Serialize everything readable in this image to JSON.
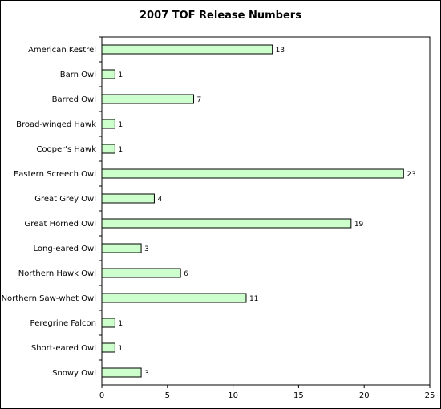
{
  "chart_data": {
    "type": "bar",
    "orientation": "horizontal",
    "title": "2007 TOF Release Numbers",
    "xlabel": "",
    "ylabel": "",
    "categories": [
      "American Kestrel",
      "Barn Owl",
      "Barred Owl",
      "Broad-winged Hawk",
      "Cooper's Hawk",
      "Eastern Screech Owl",
      "Great Grey Owl",
      "Great Horned Owl",
      "Long-eared Owl",
      "Northern Hawk Owl",
      "Northern Saw-whet Owl",
      "Peregrine Falcon",
      "Short-eared Owl",
      "Snowy Owl"
    ],
    "values": [
      13,
      1,
      7,
      1,
      1,
      23,
      4,
      19,
      3,
      6,
      11,
      1,
      1,
      3
    ],
    "xlim": [
      0,
      25
    ],
    "xticks": [
      0,
      5,
      10,
      15,
      20,
      25
    ],
    "grid": false,
    "legend": "none",
    "data_labels": true,
    "bar_color": "#ccffcc",
    "bar_edge_color": "#000000"
  }
}
